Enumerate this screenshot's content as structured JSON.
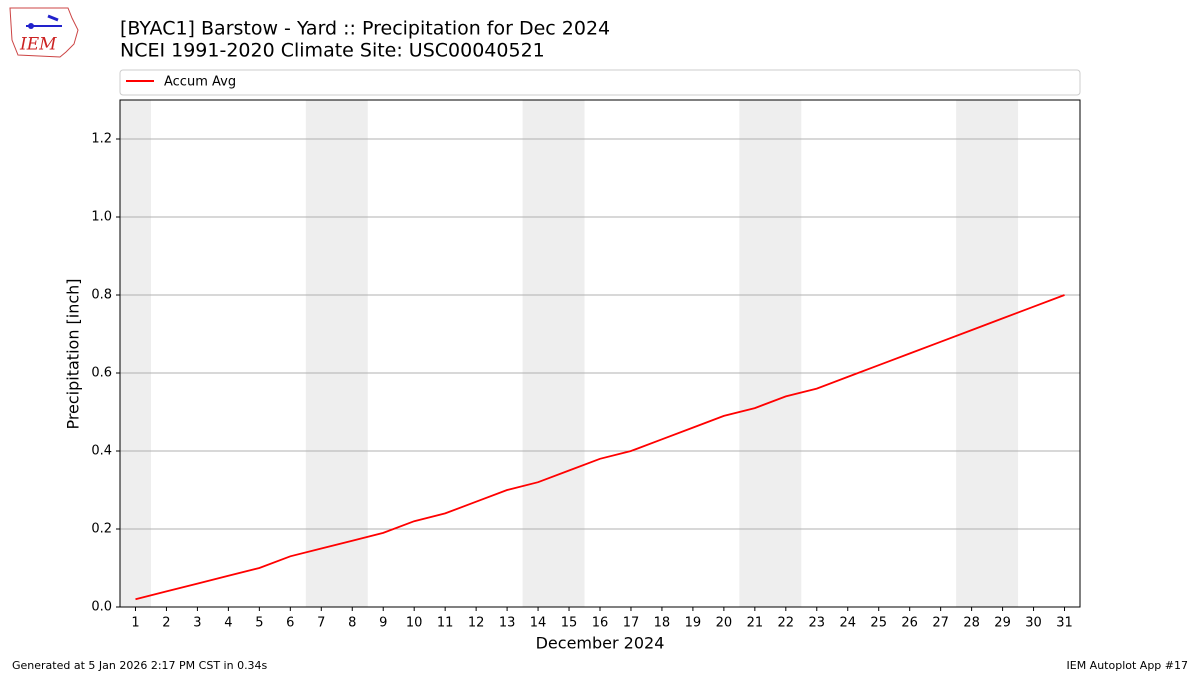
{
  "chart_data": {
    "type": "line",
    "title": "[BYAC1] Barstow - Yard :: Precipitation for Dec 2024",
    "subtitle": "NCEI 1991-2020 Climate Site: USC00040521",
    "x_label": "December 2024",
    "y_label": "Precipitation [inch]",
    "x": [
      1,
      2,
      3,
      4,
      5,
      6,
      7,
      8,
      9,
      10,
      11,
      12,
      13,
      14,
      15,
      16,
      17,
      18,
      19,
      20,
      21,
      22,
      23,
      24,
      25,
      26,
      27,
      28,
      29,
      30,
      31
    ],
    "series": [
      {
        "name": "Accum Avg",
        "color": "#ff0000",
        "values": [
          0.02,
          0.04,
          0.06,
          0.08,
          0.1,
          0.13,
          0.15,
          0.17,
          0.19,
          0.22,
          0.24,
          0.27,
          0.3,
          0.32,
          0.35,
          0.38,
          0.4,
          0.43,
          0.46,
          0.49,
          0.51,
          0.54,
          0.56,
          0.59,
          0.62,
          0.65,
          0.68,
          0.71,
          0.74,
          0.77,
          0.8
        ]
      }
    ],
    "shaded_ranges": [
      [
        0.5,
        1.5
      ],
      [
        6.5,
        8.5
      ],
      [
        13.5,
        15.5
      ],
      [
        20.5,
        22.5
      ],
      [
        27.5,
        29.5
      ]
    ],
    "shade_color": "#eeeeee",
    "xlim": [
      0.5,
      31.5
    ],
    "xticks": [
      1,
      2,
      3,
      4,
      5,
      6,
      7,
      8,
      9,
      10,
      11,
      12,
      13,
      14,
      15,
      16,
      17,
      18,
      19,
      20,
      21,
      22,
      23,
      24,
      25,
      26,
      27,
      28,
      29,
      30,
      31
    ],
    "ylim": [
      0,
      1.3
    ],
    "yticks": [
      {
        "value": 0,
        "label": "0.0"
      },
      {
        "value": 0.2,
        "label": "0.2"
      },
      {
        "value": 0.4,
        "label": "0.4"
      },
      {
        "value": 0.6,
        "label": "0.6"
      },
      {
        "value": 0.8,
        "label": "0.8"
      },
      {
        "value": 1.0,
        "label": "1.0"
      },
      {
        "value": 1.2,
        "label": "1.2"
      }
    ],
    "grid": true,
    "legend": "top"
  },
  "logo_text": "IEM",
  "footer_left": "Generated at 5 Jan 2026 2:17 PM CST in 0.34s",
  "footer_right": "IEM Autoplot App #17"
}
